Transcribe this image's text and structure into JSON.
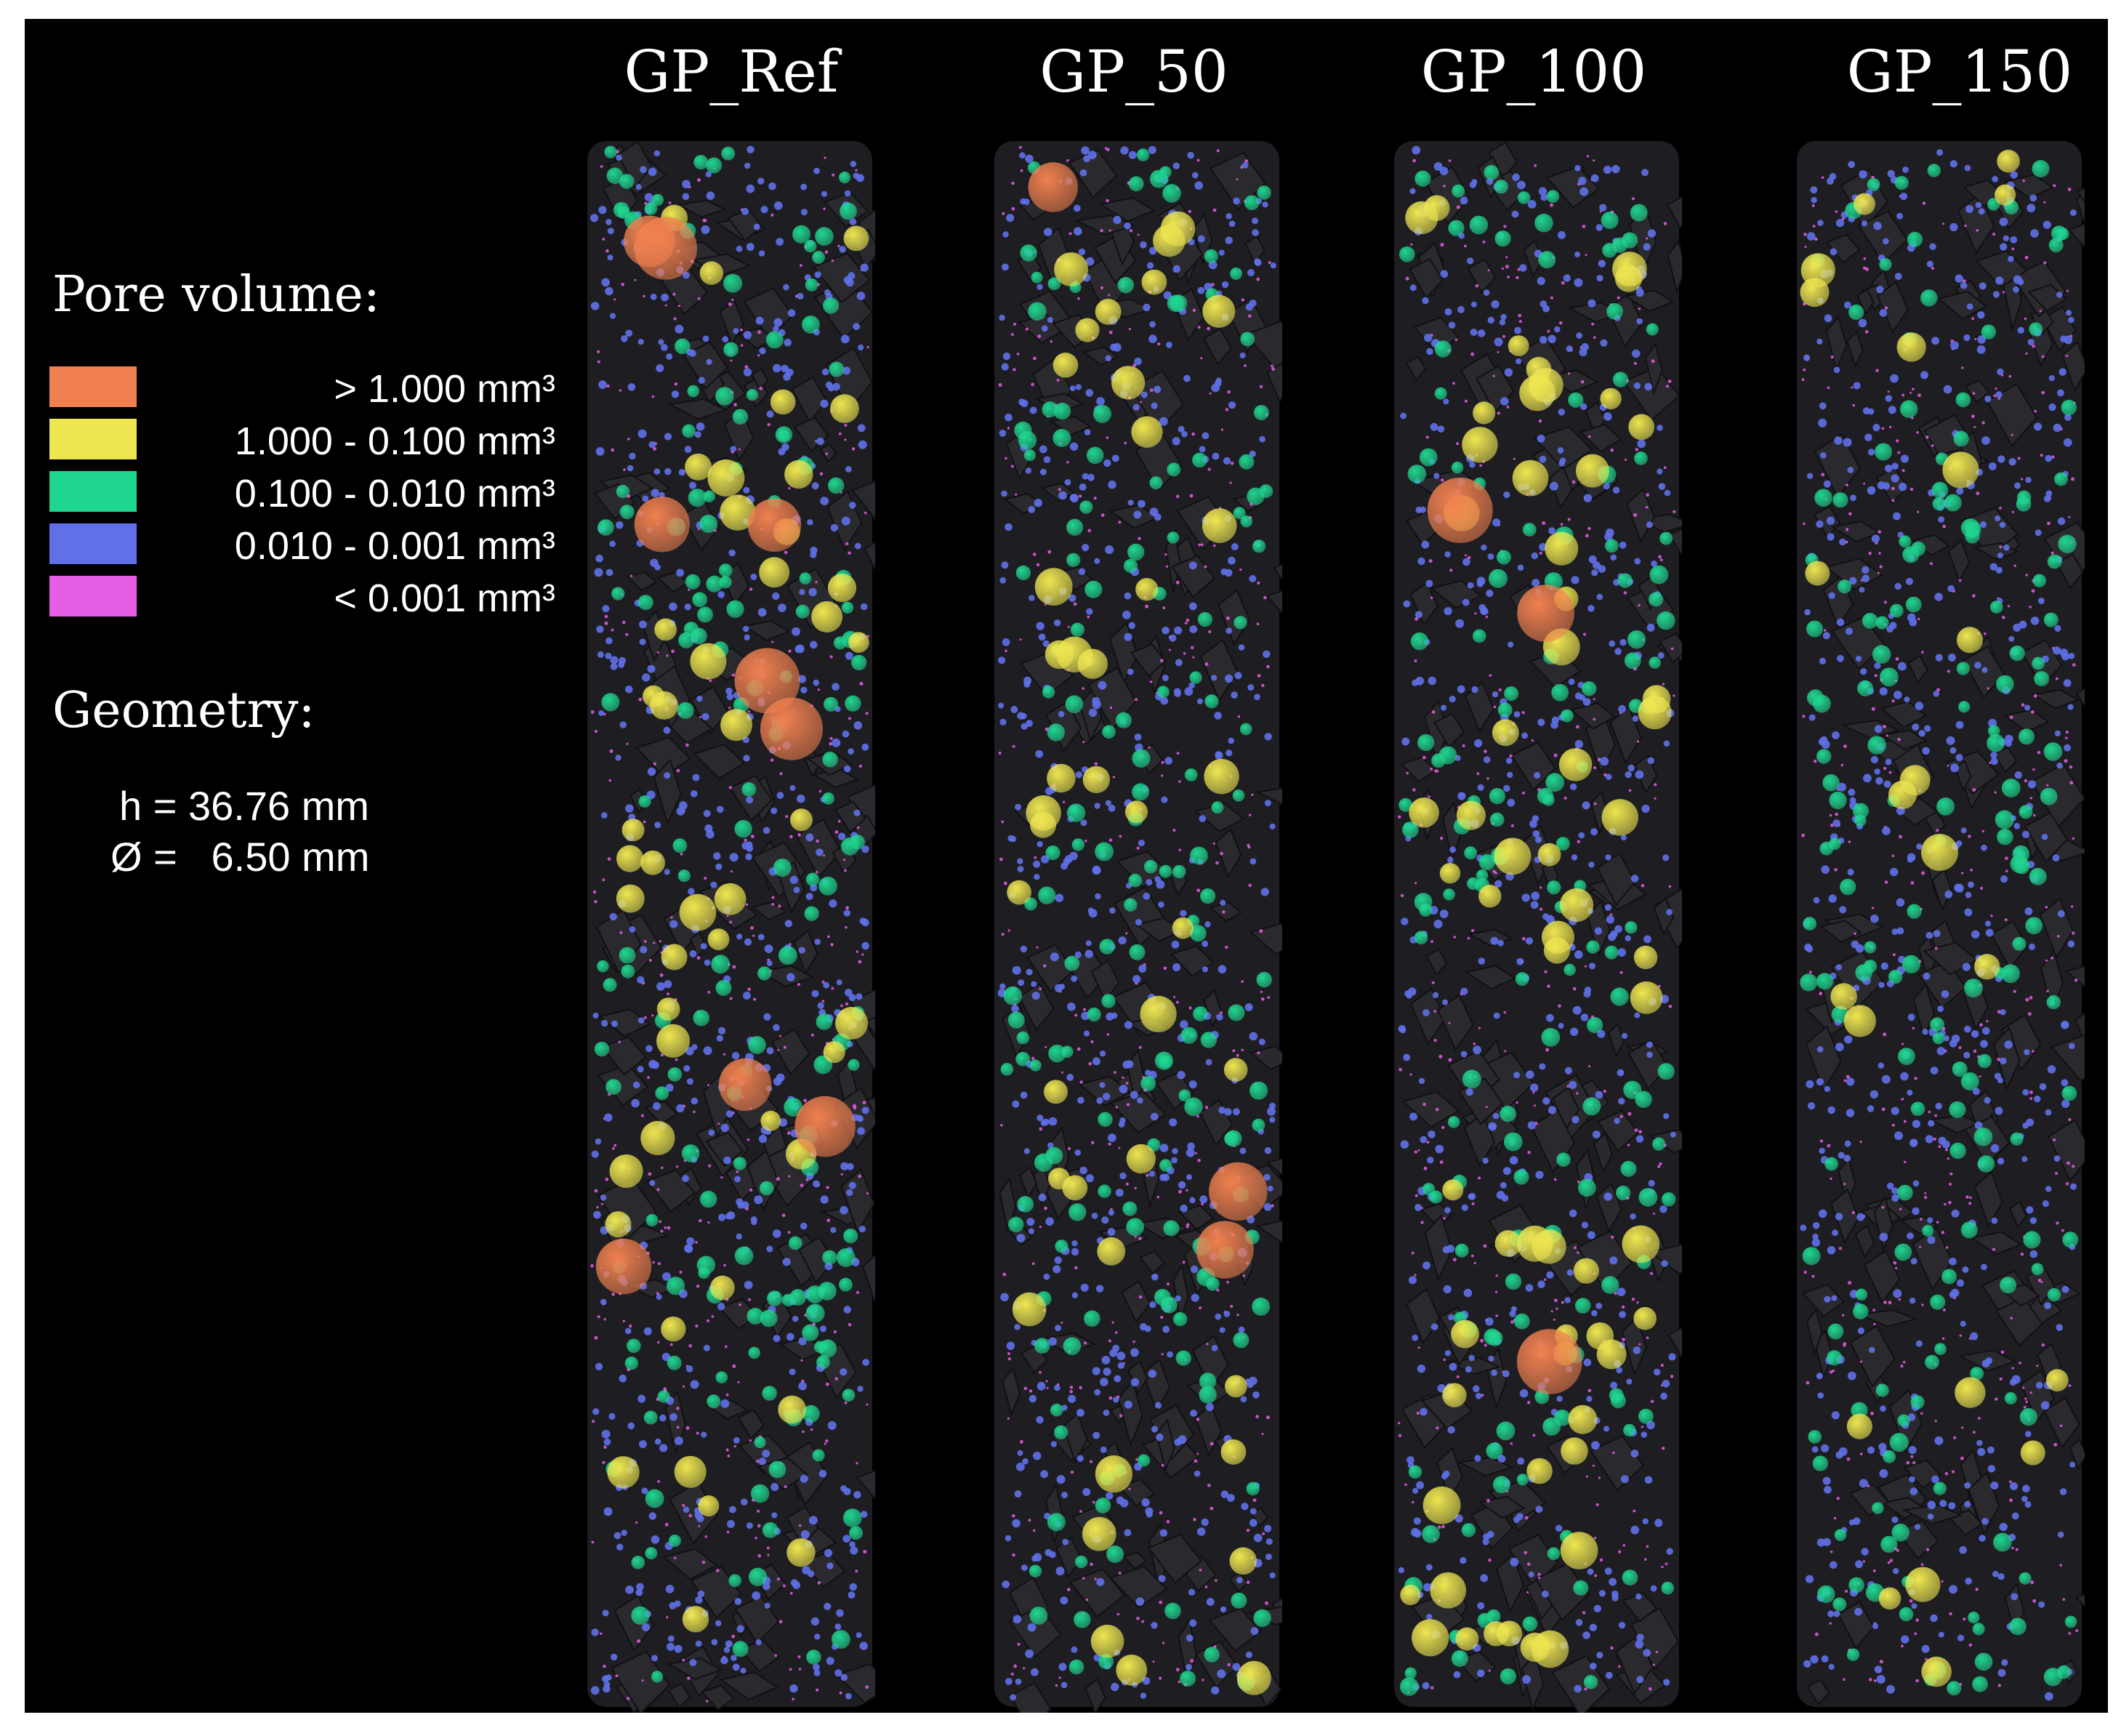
{
  "legend": {
    "title": "Pore volume:",
    "items": [
      {
        "label": "> 1.000 mm³",
        "color": "#f0804f"
      },
      {
        "label": "1.000 - 0.100 mm³",
        "color": "#eee650"
      },
      {
        "label": "0.100 - 0.010 mm³",
        "color": "#1fd690"
      },
      {
        "label": "0.010 - 0.001 mm³",
        "color": "#5f70e8"
      },
      {
        "label": "< 0.001 mm³",
        "color": "#e65de6"
      }
    ]
  },
  "geometry": {
    "title": "Geometry:",
    "height": "h = 36.76 mm",
    "diameter": "Ø =   6.50 mm"
  },
  "samples": [
    {
      "name": "GP_Ref"
    },
    {
      "name": "GP_50"
    },
    {
      "name": "GP_100"
    },
    {
      "name": "GP_150"
    }
  ],
  "colors": {
    "background": "#000000",
    "column_body": "#1e1e22"
  }
}
